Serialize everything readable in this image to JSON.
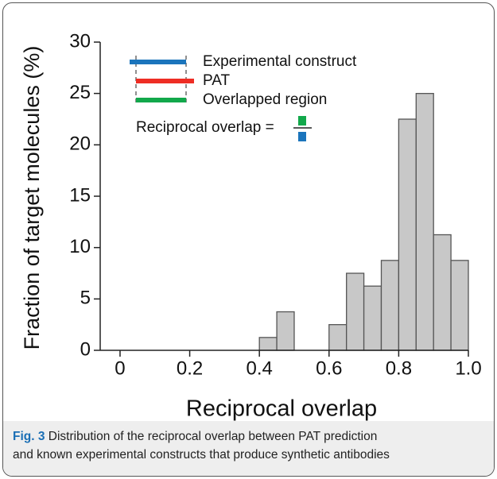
{
  "chart_data": {
    "type": "histogram",
    "xlabel": "Reciprocal overlap",
    "ylabel": "Fraction of target molecules (%)",
    "bins": [
      0.4,
      0.45,
      0.5,
      0.55,
      0.6,
      0.65,
      0.7,
      0.75,
      0.8,
      0.85,
      0.9,
      0.95,
      1.0
    ],
    "values": [
      1.25,
      3.75,
      0,
      0,
      2.5,
      7.5,
      6.25,
      8.75,
      22.5,
      25,
      11.25,
      8.75
    ],
    "color": "#c8c8c8",
    "xlim": [
      -0.057,
      1.0
    ],
    "xticks": [
      0,
      0.2,
      0.4,
      0.6,
      0.8,
      {
        "value": 1.0,
        "label": "1.0"
      }
    ],
    "ylim": [
      0,
      30
    ],
    "yticks": [
      0,
      5,
      10,
      15,
      20,
      25,
      30
    ],
    "legend": [
      {
        "name": "Experimental construct",
        "color": "#1b75bc"
      },
      {
        "name": "PAT",
        "color": "#ee2d24"
      },
      {
        "name": "Overlapped region",
        "color": "#12a84b"
      }
    ],
    "annotation": "Reciprocal overlap ="
  },
  "caption": {
    "label": "Fig. 3",
    "lines": [
      "Distribution of the reciprocal overlap between PAT prediction",
      "and known experimental constructs that produce synthetic antibodies"
    ]
  }
}
